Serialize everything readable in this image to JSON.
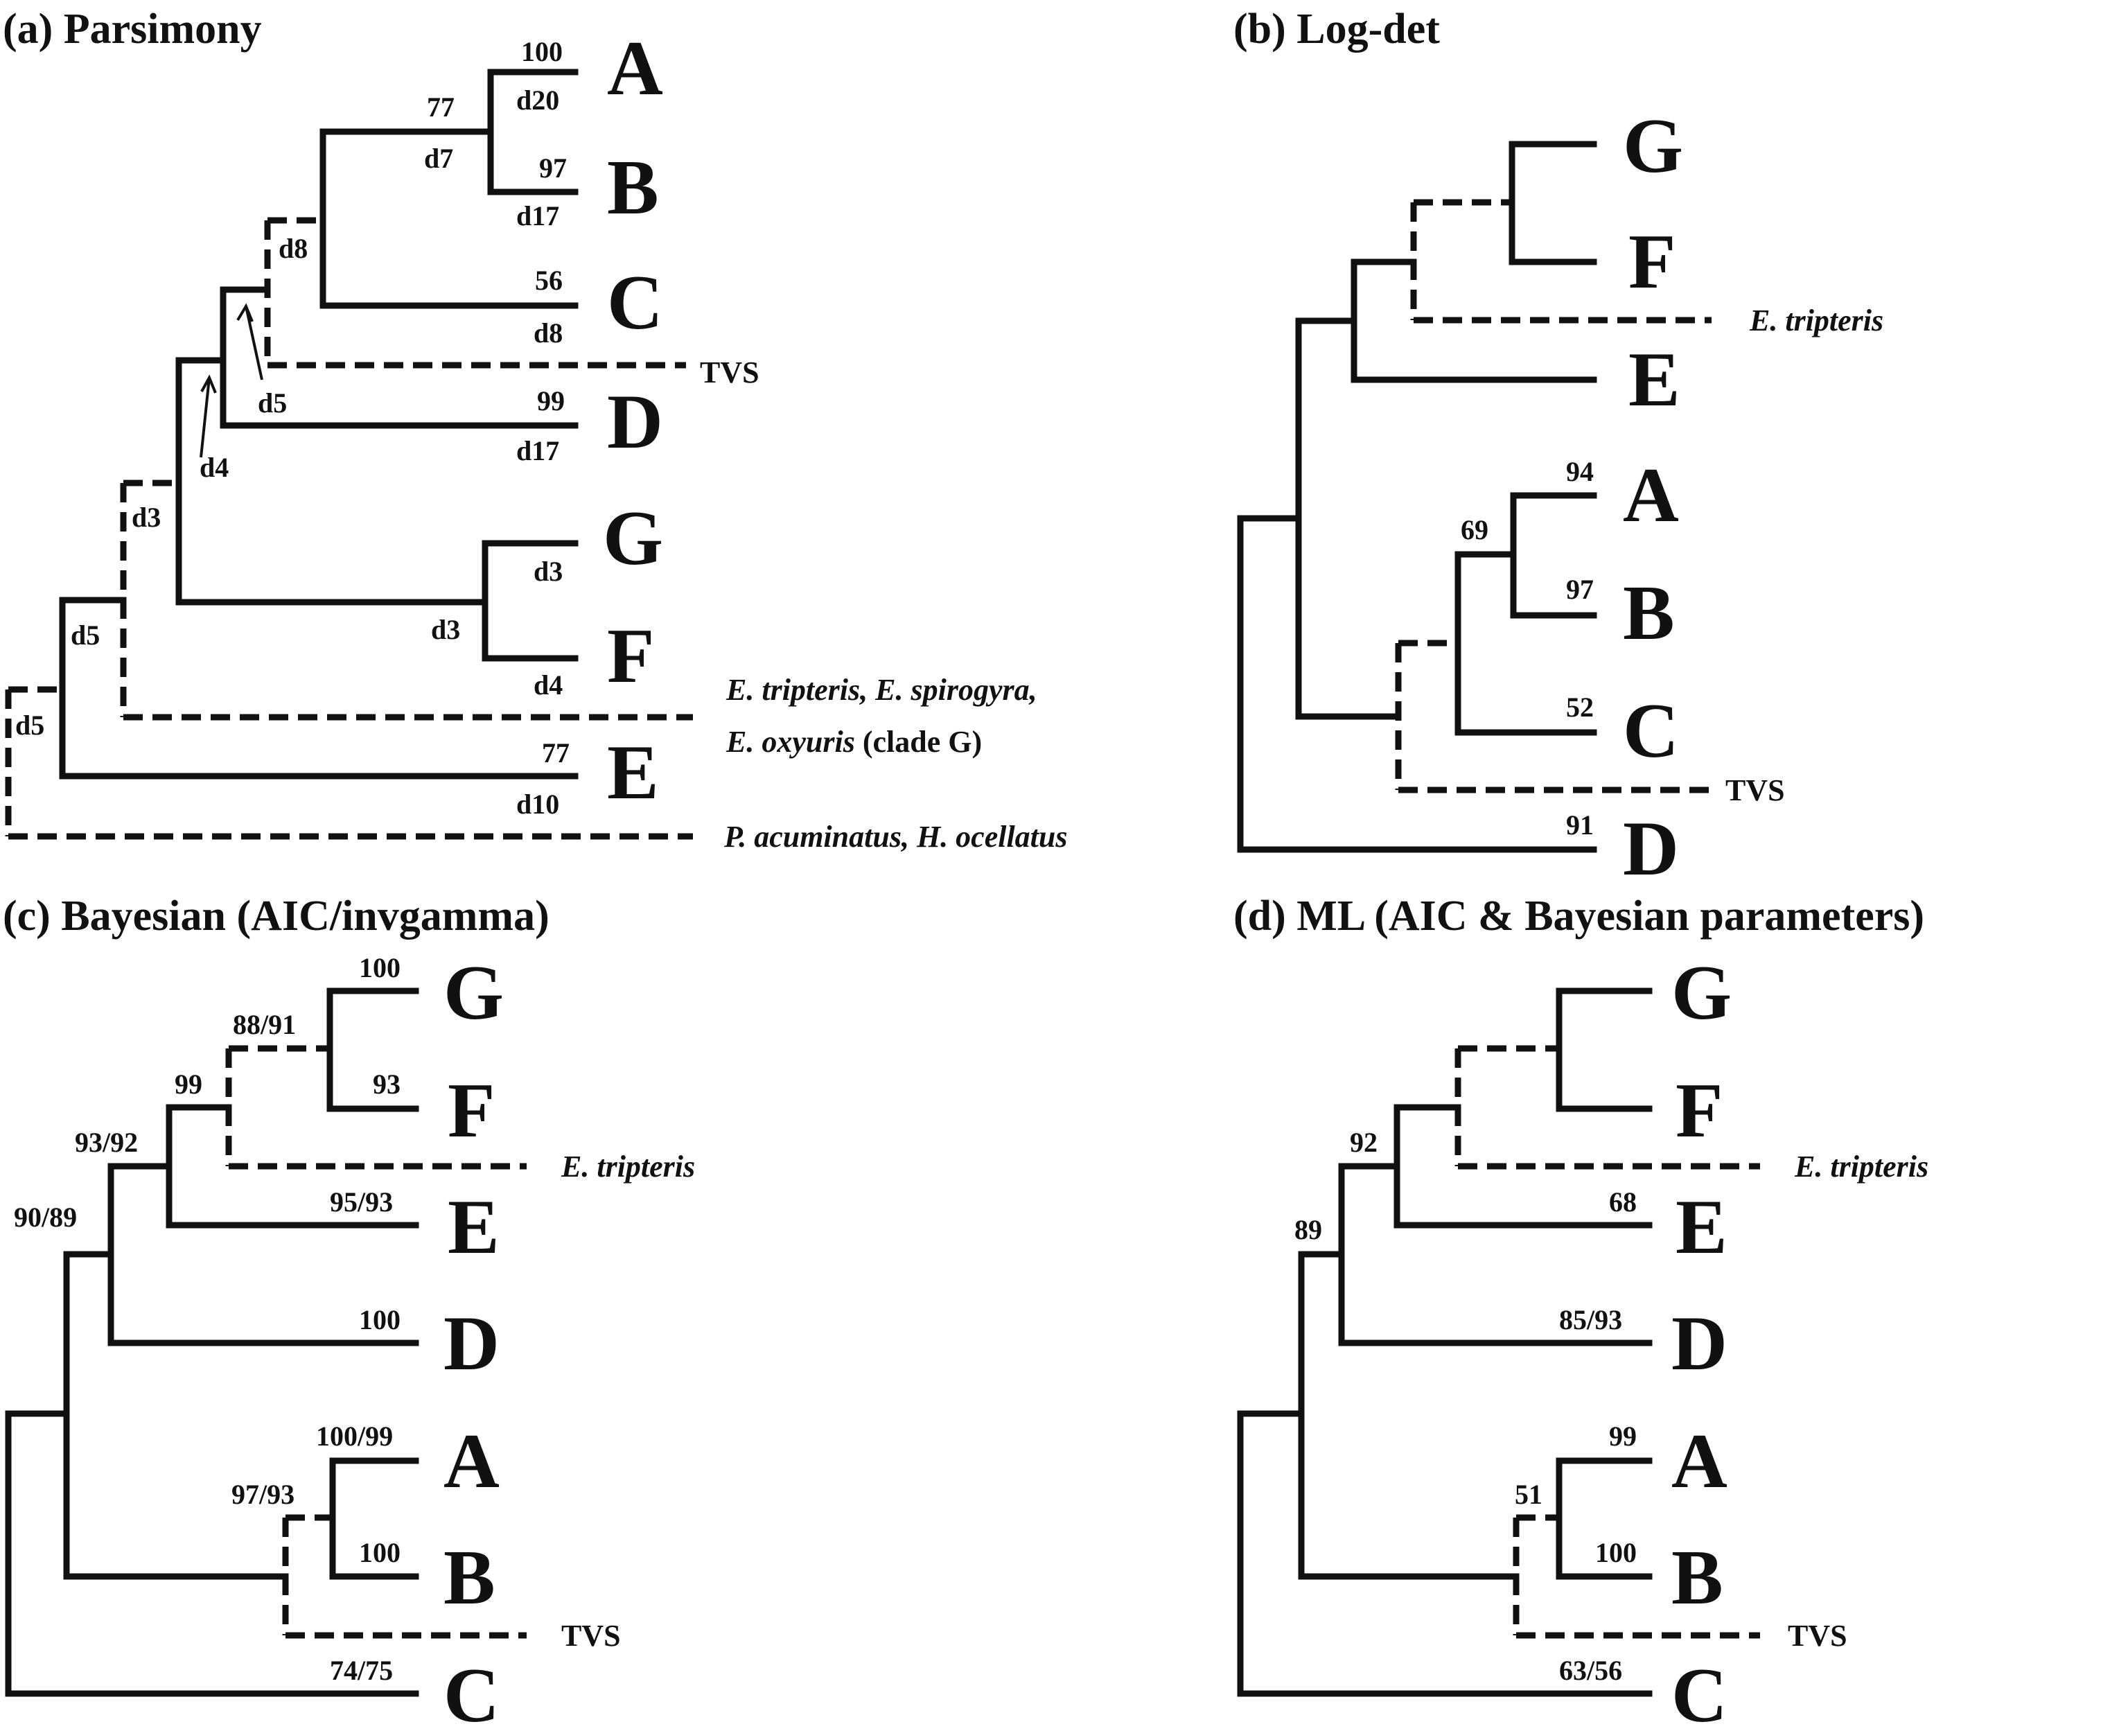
{
  "panels": {
    "a": {
      "title": "(a) Parsimony",
      "taxa": [
        "A",
        "B",
        "C",
        "D",
        "G",
        "F",
        "E"
      ],
      "side_labels": {
        "tvs": "TVS",
        "clade_g_line1": "E. tripteris, E. spirogyra,",
        "clade_g_line2_italic": "E. oxyuris",
        "clade_g_line2_rest": " (clade G)",
        "outgroup": "P. acuminatus, H. ocellatus"
      },
      "support": {
        "a": "100",
        "a_d": "d20",
        "b": "97",
        "b_d": "d17",
        "ab": "77",
        "ab_d": "d7",
        "c": "56",
        "c_d": "d8",
        "tvs_node": "d8",
        "d_node": "d5",
        "d": "99",
        "d_d": "d17",
        "d4": "d4",
        "gf_d3_left": "d3",
        "g_d": "d3",
        "gf_d": "d3",
        "f_d": "d4",
        "node_d5": "d5",
        "e": "77",
        "e_d": "d10",
        "root_d5": "d5"
      }
    },
    "b": {
      "title": "(b) Log-det",
      "taxa": [
        "G",
        "F",
        "E",
        "A",
        "B",
        "C",
        "D"
      ],
      "side_labels": {
        "tripteris": "E. tripteris",
        "tvs": "TVS"
      },
      "support": {
        "a": "94",
        "ab": "69",
        "b": "97",
        "c": "52",
        "d": "91"
      }
    },
    "c": {
      "title": "(c) Bayesian (AIC/invgamma)",
      "taxa": [
        "G",
        "F",
        "E",
        "D",
        "A",
        "B",
        "C"
      ],
      "side_labels": {
        "tripteris": "E. tripteris",
        "tvs": "TVS"
      },
      "support": {
        "g": "100",
        "gf": "88/91",
        "f": "93",
        "gft": "99",
        "gfte": "93/92",
        "e": "95/93",
        "top": "90/89",
        "d": "100",
        "a": "100/99",
        "ab": "97/93",
        "b": "100",
        "c": "74/75"
      }
    },
    "d": {
      "title": "(d) ML (AIC & Bayesian parameters)",
      "taxa": [
        "G",
        "F",
        "E",
        "D",
        "A",
        "B",
        "C"
      ],
      "side_labels": {
        "tripteris": "E. tripteris",
        "tvs": "TVS"
      },
      "support": {
        "gfte": "92",
        "top": "89",
        "e": "68",
        "d": "85/93",
        "a": "99",
        "ab": "51",
        "b": "100",
        "c": "63/56"
      }
    }
  }
}
